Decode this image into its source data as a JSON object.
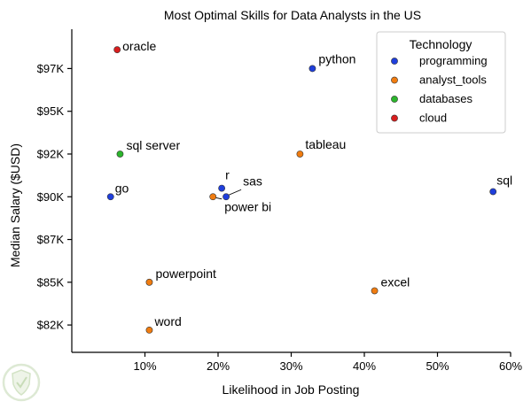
{
  "chart_data": {
    "type": "scatter",
    "title": "Most Optimal Skills for Data Analysts in the US",
    "xlabel": "Likelihood in Job Posting",
    "ylabel": "Median Salary ($USD)",
    "xlim": [
      0.0,
      0.6
    ],
    "ylim": [
      80900,
      99800
    ],
    "x_ticks": [
      {
        "value": 0.1,
        "label": "10%"
      },
      {
        "value": 0.2,
        "label": "20%"
      },
      {
        "value": 0.3,
        "label": "30%"
      },
      {
        "value": 0.4,
        "label": "40%"
      },
      {
        "value": 0.5,
        "label": "50%"
      },
      {
        "value": 0.6,
        "label": "60%"
      }
    ],
    "y_ticks": [
      {
        "value": 82500,
        "label": "$82K"
      },
      {
        "value": 85000,
        "label": "$85K"
      },
      {
        "value": 87500,
        "label": "$87K"
      },
      {
        "value": 90000,
        "label": "$90K"
      },
      {
        "value": 92500,
        "label": "$92K"
      },
      {
        "value": 95000,
        "label": "$95K"
      },
      {
        "value": 97500,
        "label": "$97K"
      }
    ],
    "grid": false,
    "legend": {
      "title": "Technology",
      "placement": "top-right",
      "entries": [
        {
          "name": "programming",
          "color": "#1f3fdc"
        },
        {
          "name": "analyst_tools",
          "color": "#f07c10"
        },
        {
          "name": "databases",
          "color": "#2cb52c"
        },
        {
          "name": "cloud",
          "color": "#d81e1e"
        }
      ]
    },
    "points": [
      {
        "label": "sql",
        "x": 0.576,
        "y": 90300,
        "group": "programming"
      },
      {
        "label": "excel",
        "x": 0.414,
        "y": 84500,
        "group": "analyst_tools"
      },
      {
        "label": "tableau",
        "x": 0.312,
        "y": 92500,
        "group": "analyst_tools"
      },
      {
        "label": "python",
        "x": 0.329,
        "y": 97500,
        "group": "programming"
      },
      {
        "label": "sas",
        "x": 0.211,
        "y": 90000,
        "group": "programming"
      },
      {
        "label": "r",
        "x": 0.205,
        "y": 90500,
        "group": "programming"
      },
      {
        "label": "power bi",
        "x": 0.193,
        "y": 90000,
        "group": "analyst_tools"
      },
      {
        "label": "powerpoint",
        "x": 0.106,
        "y": 85000,
        "group": "analyst_tools"
      },
      {
        "label": "word",
        "x": 0.106,
        "y": 82200,
        "group": "analyst_tools"
      },
      {
        "label": "sql server",
        "x": 0.066,
        "y": 92500,
        "group": "databases"
      },
      {
        "label": "oracle",
        "x": 0.062,
        "y": 98600,
        "group": "cloud"
      },
      {
        "label": "go",
        "x": 0.053,
        "y": 90000,
        "group": "programming"
      }
    ]
  }
}
